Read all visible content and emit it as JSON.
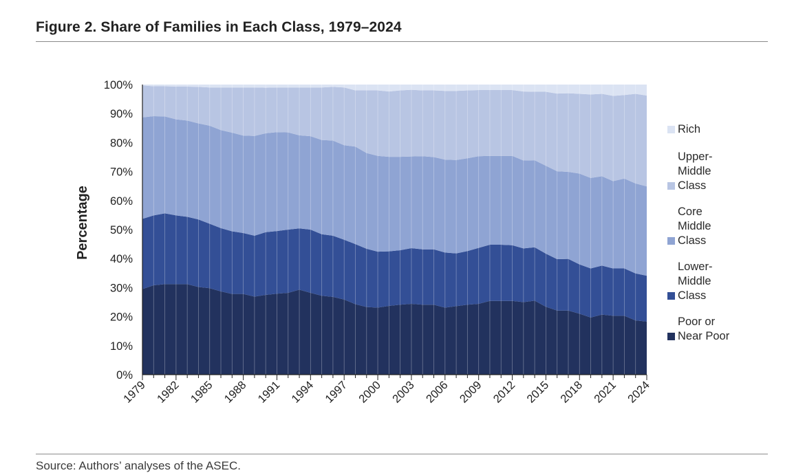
{
  "figure": {
    "title": "Figure 2. Share of Families in Each Class, 1979–2024",
    "source": "Source: Authors’ analyses of the ASEC."
  },
  "colors": {
    "Poor or Near Poor": "#22325e",
    "Lower-Middle Class": "#334f96",
    "Core Middle Class": "#8fa4d3",
    "Upper-Middle Class": "#b8c5e3",
    "Rich": "#dbe3f3"
  },
  "legend": [
    {
      "key": "Rich",
      "lines": [
        "Rich"
      ]
    },
    {
      "key": "Upper-Middle Class",
      "lines": [
        "Upper-",
        "Middle",
        "Class"
      ]
    },
    {
      "key": "Core Middle Class",
      "lines": [
        "Core",
        "Middle",
        "Class"
      ]
    },
    {
      "key": "Lower-Middle Class",
      "lines": [
        "Lower-",
        "Middle",
        "Class"
      ]
    },
    {
      "key": "Poor or Near Poor",
      "lines": [
        "Poor or",
        "Near Poor"
      ]
    }
  ],
  "chart_data": {
    "type": "area",
    "stacked": true,
    "title": "Figure 2. Share of Families in Each Class, 1979–2024",
    "xlabel": "",
    "ylabel": "Percentage",
    "ylim": [
      0,
      100
    ],
    "y_ticks": [
      "0%",
      "10%",
      "20%",
      "30%",
      "40%",
      "50%",
      "60%",
      "70%",
      "80%",
      "90%",
      "100%"
    ],
    "x_tick_labels": [
      "1979",
      "1982",
      "1985",
      "1988",
      "1991",
      "1994",
      "1997",
      "2000",
      "2003",
      "2006",
      "2009",
      "2012",
      "2015",
      "2018",
      "2021",
      "2024"
    ],
    "grid": false,
    "legend_position": "right",
    "x": [
      1979,
      1980,
      1981,
      1982,
      1983,
      1984,
      1985,
      1986,
      1987,
      1988,
      1989,
      1990,
      1991,
      1992,
      1993,
      1994,
      1995,
      1996,
      1997,
      1998,
      1999,
      2000,
      2001,
      2002,
      2003,
      2004,
      2005,
      2006,
      2007,
      2008,
      2009,
      2010,
      2011,
      2012,
      2013,
      2014,
      2015,
      2016,
      2017,
      2018,
      2019,
      2020,
      2021,
      2022,
      2023,
      2024
    ],
    "series": [
      {
        "name": "Poor or Near Poor",
        "values": [
          29.5,
          30.8,
          31.2,
          31.2,
          31.2,
          30.2,
          29.8,
          28.7,
          27.8,
          27.8,
          26.9,
          27.5,
          27.9,
          28.2,
          29.3,
          28.2,
          27.2,
          26.8,
          25.9,
          24.3,
          23.3,
          23.1,
          23.7,
          24.1,
          24.4,
          24.1,
          24.1,
          23.1,
          23.6,
          24.1,
          24.4,
          25.4,
          25.4,
          25.4,
          25.0,
          25.5,
          23.4,
          22.1,
          22.1,
          21.0,
          19.7,
          20.7,
          20.3,
          20.3,
          18.7,
          18.3
        ]
      },
      {
        "name": "Lower-Middle Class",
        "values": [
          24.2,
          24.1,
          24.4,
          23.7,
          23.2,
          23.3,
          22.2,
          21.8,
          21.6,
          21.0,
          21.0,
          21.6,
          21.6,
          21.8,
          21.1,
          21.8,
          21.2,
          21.1,
          20.6,
          20.7,
          20.1,
          19.3,
          18.8,
          18.8,
          19.2,
          19.1,
          19.1,
          19.0,
          18.2,
          18.5,
          19.3,
          19.4,
          19.4,
          19.2,
          18.5,
          18.4,
          18.3,
          17.7,
          17.8,
          17.0,
          16.9,
          16.9,
          16.3,
          16.3,
          16.2,
          15.8
        ]
      },
      {
        "name": "Core Middle Class",
        "values": [
          35.0,
          34.2,
          33.4,
          33.1,
          33.2,
          33.1,
          33.8,
          33.8,
          34.0,
          33.6,
          34.4,
          34.1,
          34.1,
          33.5,
          32.1,
          32.2,
          32.5,
          32.8,
          32.6,
          33.6,
          33.0,
          33.0,
          32.6,
          32.2,
          31.6,
          32.1,
          31.8,
          32.0,
          32.2,
          32.0,
          31.6,
          30.6,
          30.6,
          30.8,
          30.3,
          30.0,
          30.3,
          30.3,
          30.0,
          31.3,
          31.2,
          30.8,
          30.1,
          31.0,
          31.0,
          30.8
        ]
      },
      {
        "name": "Upper-Middle Class",
        "values": [
          11.0,
          10.3,
          10.4,
          11.3,
          11.7,
          12.6,
          13.2,
          14.7,
          15.6,
          16.6,
          16.7,
          15.7,
          15.4,
          15.5,
          16.5,
          16.8,
          18.1,
          18.5,
          19.9,
          19.4,
          21.6,
          22.6,
          22.5,
          22.9,
          23.0,
          22.7,
          23.0,
          23.7,
          23.8,
          23.4,
          22.8,
          22.7,
          22.7,
          22.7,
          23.8,
          23.6,
          25.5,
          26.8,
          27.1,
          27.5,
          28.8,
          28.4,
          29.4,
          28.8,
          30.9,
          31.3
        ]
      },
      {
        "name": "Rich",
        "values": [
          0.3,
          0.6,
          0.6,
          0.7,
          0.7,
          0.8,
          1.0,
          1.0,
          1.0,
          1.0,
          1.0,
          1.1,
          1.0,
          1.0,
          1.0,
          1.0,
          1.0,
          0.8,
          1.0,
          2.0,
          2.0,
          2.0,
          2.4,
          2.0,
          1.8,
          2.0,
          2.0,
          2.2,
          2.2,
          2.0,
          1.9,
          1.9,
          1.9,
          1.9,
          2.4,
          2.5,
          2.5,
          3.1,
          3.0,
          3.2,
          3.4,
          3.2,
          3.9,
          3.6,
          3.2,
          3.8
        ]
      }
    ]
  }
}
